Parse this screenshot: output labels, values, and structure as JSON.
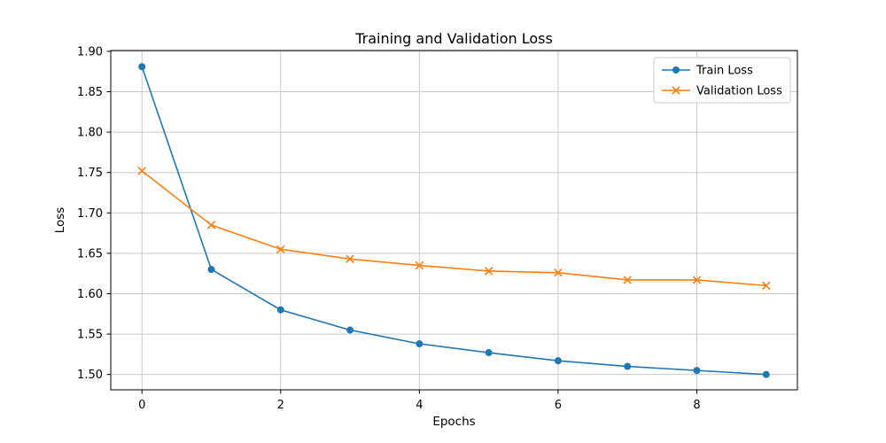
{
  "chart_data": {
    "type": "line",
    "title": "Training and Validation Loss",
    "xlabel": "Epochs",
    "ylabel": "Loss",
    "grid": true,
    "legend_position": "upper right",
    "xlim": [
      -0.45,
      9.45
    ],
    "ylim": [
      1.481,
      1.901
    ],
    "xticks": [
      0,
      2,
      4,
      6,
      8
    ],
    "yticks": [
      1.5,
      1.55,
      1.6,
      1.65,
      1.7,
      1.75,
      1.8,
      1.85,
      1.9
    ],
    "x": [
      0,
      1,
      2,
      3,
      4,
      5,
      6,
      7,
      8,
      9
    ],
    "series": [
      {
        "name": "Train Loss",
        "color": "#1f77b4",
        "marker": "circle",
        "values": [
          1.881,
          1.63,
          1.58,
          1.555,
          1.538,
          1.527,
          1.517,
          1.51,
          1.505,
          1.5
        ]
      },
      {
        "name": "Validation Loss",
        "color": "#ff7f0e",
        "marker": "x",
        "values": [
          1.752,
          1.685,
          1.655,
          1.643,
          1.635,
          1.628,
          1.626,
          1.617,
          1.617,
          1.61
        ]
      }
    ]
  }
}
